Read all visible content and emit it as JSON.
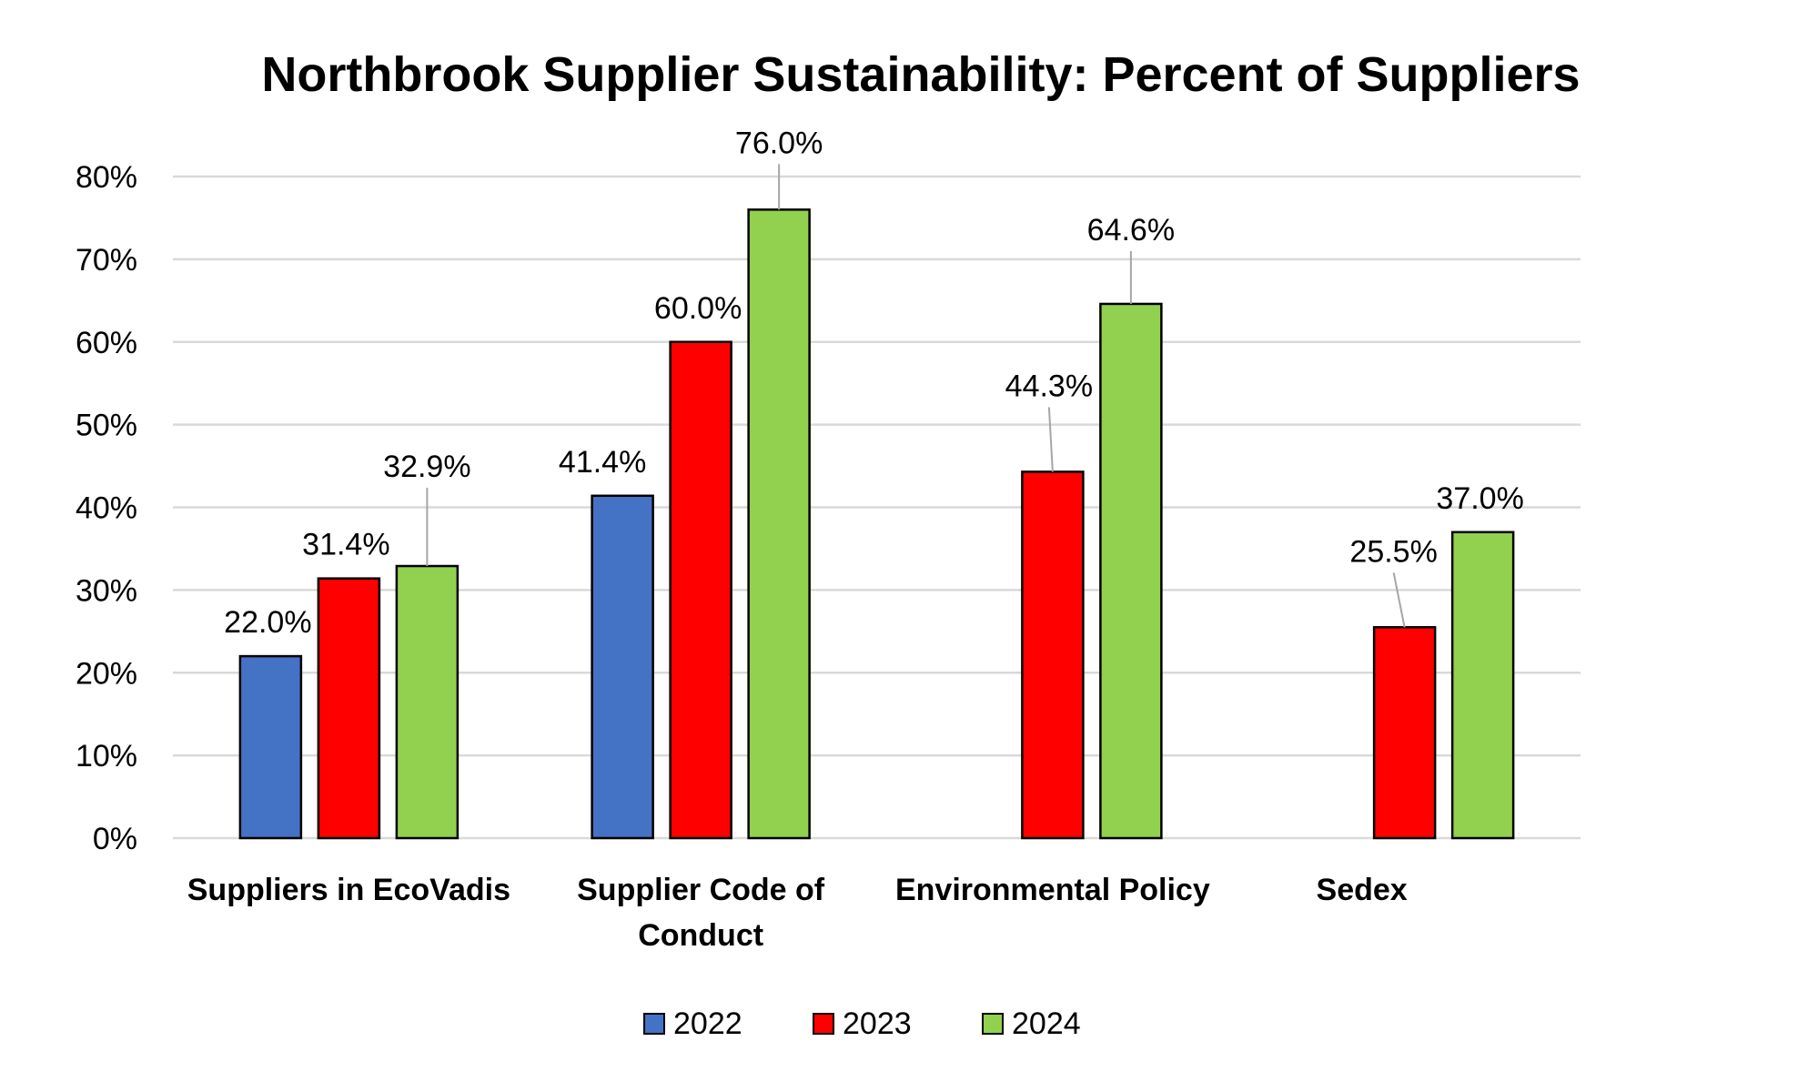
{
  "chart_data": {
    "type": "bar",
    "title": "Northbrook Supplier Sustainability: Percent of Suppliers",
    "xlabel": "",
    "ylabel": "",
    "ylim": [
      0,
      80
    ],
    "y_ticks": [
      "0%",
      "10%",
      "20%",
      "30%",
      "40%",
      "50%",
      "60%",
      "70%",
      "80%"
    ],
    "grid": true,
    "legend_position": "bottom",
    "categories": [
      [
        "Suppliers in EcoVadis"
      ],
      [
        "Supplier Code of",
        "Conduct"
      ],
      [
        "Environmental Policy"
      ],
      [
        "Sedex"
      ]
    ],
    "series": [
      {
        "name": "2022",
        "color": "#4472C4",
        "values": [
          22.0,
          41.4,
          null,
          null
        ],
        "labels": [
          "22.0%",
          "41.4%",
          "",
          ""
        ]
      },
      {
        "name": "2023",
        "color": "#FF0000",
        "values": [
          31.4,
          60.0,
          44.3,
          25.5
        ],
        "labels": [
          "31.4%",
          "60.0%",
          "44.3%",
          "25.5%"
        ]
      },
      {
        "name": "2024",
        "color": "#92D050",
        "values": [
          32.9,
          76.0,
          64.6,
          37.0
        ],
        "labels": [
          "32.9%",
          "76.0%",
          "64.6%",
          "37.0%"
        ]
      }
    ]
  }
}
